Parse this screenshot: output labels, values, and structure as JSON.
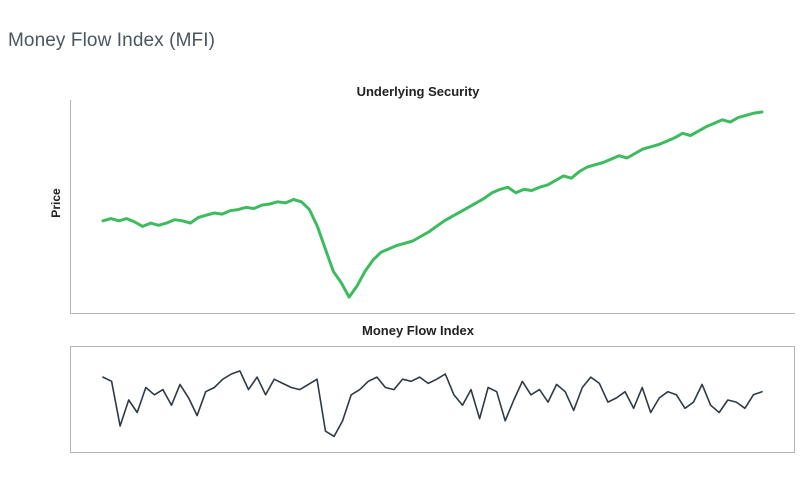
{
  "page": {
    "title": "Money Flow Index (MFI)"
  },
  "chart_data": [
    {
      "type": "line",
      "title": "Underlying Security",
      "xlabel": "",
      "ylabel": "Price",
      "grid": false,
      "color": "#3dbb5f",
      "values": [
        30,
        32,
        30,
        32,
        29,
        25,
        28,
        26,
        28,
        31,
        30,
        28,
        33,
        35,
        37,
        36,
        39,
        40,
        42,
        41,
        44,
        45,
        47,
        46,
        49,
        47,
        40,
        25,
        5,
        -15,
        -25,
        -38,
        -28,
        -15,
        -5,
        2,
        5,
        8,
        10,
        12,
        16,
        20,
        25,
        30,
        34,
        38,
        42,
        46,
        50,
        55,
        58,
        60,
        55,
        58,
        57,
        60,
        62,
        66,
        70,
        68,
        74,
        78,
        80,
        82,
        85,
        88,
        86,
        90,
        94,
        96,
        98,
        101,
        104,
        108,
        106,
        110,
        114,
        117,
        120,
        118,
        122,
        124,
        126,
        127
      ],
      "ylim": [
        -45,
        135
      ]
    },
    {
      "type": "line",
      "title": "Money Flow Index",
      "xlabel": "",
      "ylabel": "",
      "grid": false,
      "color": "#2f3a45",
      "values": [
        72,
        68,
        25,
        50,
        38,
        62,
        55,
        60,
        45,
        65,
        52,
        35,
        58,
        62,
        70,
        75,
        78,
        60,
        72,
        55,
        70,
        66,
        62,
        60,
        65,
        70,
        20,
        15,
        30,
        55,
        60,
        68,
        72,
        62,
        60,
        70,
        68,
        72,
        66,
        70,
        75,
        55,
        45,
        60,
        32,
        62,
        58,
        30,
        50,
        68,
        55,
        60,
        48,
        65,
        58,
        40,
        62,
        72,
        66,
        48,
        52,
        58,
        42,
        62,
        38,
        52,
        58,
        55,
        42,
        48,
        65,
        45,
        38,
        50,
        48,
        42,
        55,
        58
      ],
      "ylim": [
        0,
        100
      ]
    }
  ]
}
